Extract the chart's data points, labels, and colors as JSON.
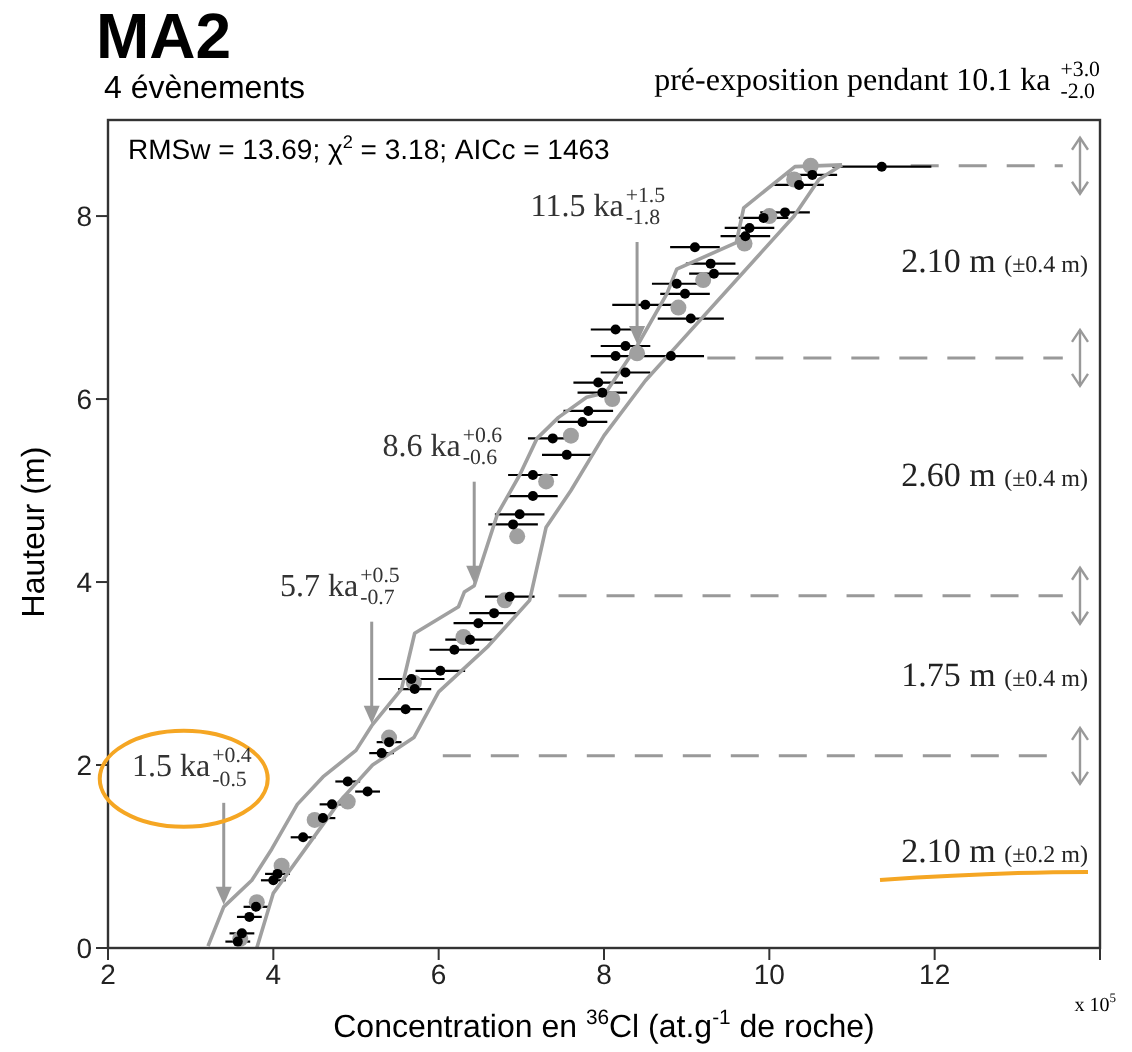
{
  "chart_data": {
    "type": "scatter",
    "title": "MA2",
    "subtitle": "4 évènements",
    "xlabel": "Concentration en $^{36}$Cl (at.g$^{-1}$ de roche)",
    "ylabel": "Hauteur (m)",
    "xlim": [
      2,
      14
    ],
    "xticks": [
      2,
      4,
      6,
      8,
      10,
      12,
      {
        "value": 14,
        "label": null
      }
    ],
    "ylim": [
      0,
      9.05
    ],
    "yticks": [
      0,
      2,
      4,
      6,
      8
    ],
    "marker": "circle",
    "series": [
      {
        "color": "#000000",
        "x": [
          3.57,
          3.62,
          3.71,
          3.79,
          4.0,
          4.05,
          4.36,
          4.6,
          4.71,
          4.9,
          5.14,
          5.31,
          5.4,
          5.6,
          5.71,
          5.67,
          6.02,
          6.19,
          6.38,
          6.48,
          6.67,
          6.86,
          6.9,
          6.98,
          7.14,
          7.14,
          7.55,
          7.38,
          7.74,
          7.81,
          7.98,
          7.93,
          8.26,
          8.14,
          8.26,
          8.14,
          8.5,
          8.81,
          9.05,
          8.98,
          8.88,
          9.33,
          9.29,
          9.1,
          9.71,
          9.76,
          9.93,
          10.19,
          10.36,
          10.52,
          11.36
        ],
        "values": [
          0.07,
          0.16,
          0.34,
          0.45,
          0.74,
          0.81,
          1.21,
          1.42,
          1.57,
          1.82,
          1.71,
          2.13,
          2.25,
          2.61,
          2.83,
          2.94,
          3.03,
          3.26,
          3.37,
          3.55,
          3.66,
          3.84,
          4.63,
          4.74,
          4.94,
          5.17,
          5.39,
          5.57,
          5.75,
          5.87,
          6.07,
          6.18,
          6.29,
          6.47,
          6.58,
          6.76,
          7.03,
          6.47,
          6.88,
          7.15,
          7.26,
          7.37,
          7.48,
          7.66,
          7.78,
          7.87,
          7.98,
          8.04,
          8.34,
          8.45,
          8.54
        ],
        "xerrors": [
          0.15,
          0.15,
          0.15,
          0.15,
          0.15,
          0.15,
          0.15,
          0.15,
          0.15,
          0.15,
          0.15,
          0.15,
          0.15,
          0.2,
          0.2,
          0.4,
          0.3,
          0.3,
          0.3,
          0.3,
          0.3,
          0.3,
          0.3,
          0.3,
          0.3,
          0.3,
          0.3,
          0.3,
          0.3,
          0.3,
          0.3,
          0.3,
          0.3,
          0.3,
          0.3,
          0.3,
          0.4,
          0.4,
          0.4,
          0.3,
          0.3,
          0.3,
          0.3,
          0.3,
          0.3,
          0.3,
          0.3,
          0.3,
          0.3,
          0.3,
          0.6
        ]
      },
      {
        "color": "#a0a0a0",
        "x": [
          3.6,
          3.8,
          4.1,
          4.5,
          4.9,
          5.4,
          5.7,
          6.3,
          6.8,
          6.95,
          7.3,
          7.6,
          8.1,
          8.4,
          8.9,
          9.2,
          9.7,
          10.0,
          10.3,
          10.5
        ],
        "values": [
          0.1,
          0.5,
          0.9,
          1.4,
          1.6,
          2.3,
          2.9,
          3.4,
          3.8,
          4.5,
          5.1,
          5.6,
          6.0,
          6.5,
          7.0,
          7.3,
          7.7,
          8.0,
          8.4,
          8.55
        ]
      },
      {
        "type": "line",
        "color": "#a0a0a0",
        "marker": "none",
        "x": [
          3.21,
          3.4,
          3.74,
          3.98,
          4.29,
          4.6,
          5.0,
          5.19,
          5.55,
          5.71,
          6.24,
          6.31,
          6.43,
          6.71,
          6.98,
          7.19,
          7.45,
          7.79,
          8.02,
          8.4,
          8.76,
          8.88,
          9.6,
          9.69,
          10.31,
          10.88
        ],
        "values": [
          0.02,
          0.45,
          0.74,
          1.08,
          1.57,
          1.87,
          2.16,
          2.43,
          2.83,
          3.44,
          3.73,
          3.89,
          3.96,
          4.74,
          5.17,
          5.57,
          5.8,
          6.02,
          6.07,
          6.58,
          7.15,
          7.42,
          7.71,
          8.09,
          8.54,
          8.56
        ]
      },
      {
        "type": "line",
        "color": "#a0a0a0",
        "marker": "none",
        "x": [
          3.8,
          4.0,
          4.4,
          4.8,
          5.2,
          5.7,
          6.0,
          6.6,
          7.1,
          7.3,
          7.6,
          8.0,
          8.5,
          8.9,
          9.5,
          9.9,
          10.3,
          10.6,
          10.88
        ],
        "values": [
          0,
          0.6,
          1.1,
          1.6,
          2.0,
          2.3,
          2.8,
          3.3,
          3.8,
          4.6,
          5.0,
          5.6,
          6.2,
          6.6,
          7.2,
          7.6,
          8.0,
          8.4,
          8.56
        ]
      }
    ],
    "ref_lines": [
      {
        "axis": "y",
        "value": 2.1,
        "color": "#999999",
        "line_style": "dashed"
      },
      {
        "axis": "y",
        "value": 3.85,
        "color": "#999999",
        "line_style": "dashed"
      },
      {
        "axis": "y",
        "value": 6.45,
        "color": "#999999",
        "line_style": "dashed"
      },
      {
        "axis": "y",
        "value": 8.55,
        "color": "#999999",
        "line_style": "dashed"
      }
    ],
    "annotations": [
      "RMSw = 13.69;  χ$^{2}$ = 3.18; AICc = 1463",
      "pré-exposition pendant 10.1 ka $^{+3.0}$$_{-2.0}$",
      "x 10$^{5}$",
      "2.10 m (±0.2 m)",
      "1.75 m (±0.4 m)",
      "2.60 m (±0.4 m)",
      "2.10 m (±0.4 m)",
      {
        "text": "1.5 ka$^{+0.4}$$_{-0.5}$",
        "x": 3.4,
        "y": 0.45
      },
      {
        "text": "5.7 ka$^{+0.5}$$_{-0.7}$",
        "x": 5.19,
        "y": 2.43
      },
      {
        "text": "8.6 ka$^{+0.6}$$_{-0.6}$",
        "x": 6.43,
        "y": 3.96
      },
      {
        "text": "11.5 ka$^{+1.5}$$_{-1.8}$",
        "x": 8.4,
        "y": 6.58
      }
    ]
  }
}
